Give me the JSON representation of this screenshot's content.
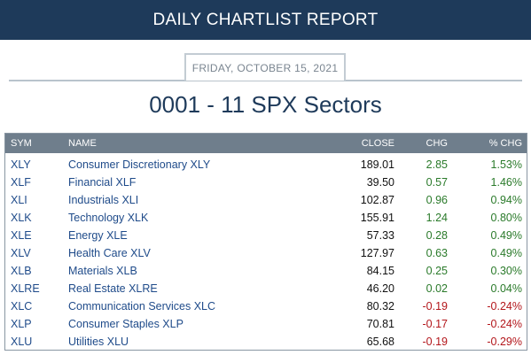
{
  "banner": {
    "title": "DAILY CHARTLIST REPORT"
  },
  "report": {
    "date": "FRIDAY, OCTOBER 15, 2021",
    "title": "0001 - 11 SPX Sectors"
  },
  "table": {
    "headers": {
      "sym": "SYM",
      "name": "NAME",
      "close": "CLOSE",
      "chg": "CHG",
      "pct": "% CHG"
    },
    "rows": [
      {
        "sym": "XLY",
        "name": "Consumer Discretionary XLY",
        "close": "189.01",
        "chg": "2.85",
        "pct": "1.53%",
        "dir": "pos"
      },
      {
        "sym": "XLF",
        "name": "Financial XLF",
        "close": "39.50",
        "chg": "0.57",
        "pct": "1.46%",
        "dir": "pos"
      },
      {
        "sym": "XLI",
        "name": "Industrials XLI",
        "close": "102.87",
        "chg": "0.96",
        "pct": "0.94%",
        "dir": "pos"
      },
      {
        "sym": "XLK",
        "name": "Technology XLK",
        "close": "155.91",
        "chg": "1.24",
        "pct": "0.80%",
        "dir": "pos"
      },
      {
        "sym": "XLE",
        "name": "Energy XLE",
        "close": "57.33",
        "chg": "0.28",
        "pct": "0.49%",
        "dir": "pos"
      },
      {
        "sym": "XLV",
        "name": "Health Care XLV",
        "close": "127.97",
        "chg": "0.63",
        "pct": "0.49%",
        "dir": "pos"
      },
      {
        "sym": "XLB",
        "name": "Materials XLB",
        "close": "84.15",
        "chg": "0.25",
        "pct": "0.30%",
        "dir": "pos"
      },
      {
        "sym": "XLRE",
        "name": "Real Estate XLRE",
        "close": "46.20",
        "chg": "0.02",
        "pct": "0.04%",
        "dir": "pos"
      },
      {
        "sym": "XLC",
        "name": "Communication Services XLC",
        "close": "80.32",
        "chg": "-0.19",
        "pct": "-0.24%",
        "dir": "neg"
      },
      {
        "sym": "XLP",
        "name": "Consumer Staples XLP",
        "close": "70.81",
        "chg": "-0.17",
        "pct": "-0.24%",
        "dir": "neg"
      },
      {
        "sym": "XLU",
        "name": "Utilities XLU",
        "close": "65.68",
        "chg": "-0.19",
        "pct": "-0.29%",
        "dir": "neg"
      }
    ]
  },
  "colors": {
    "banner": "#1e3a5a",
    "header_row": "#6f7e8c",
    "positive": "#2a7a2a",
    "negative": "#b3161b",
    "link": "#1f4b8a"
  }
}
